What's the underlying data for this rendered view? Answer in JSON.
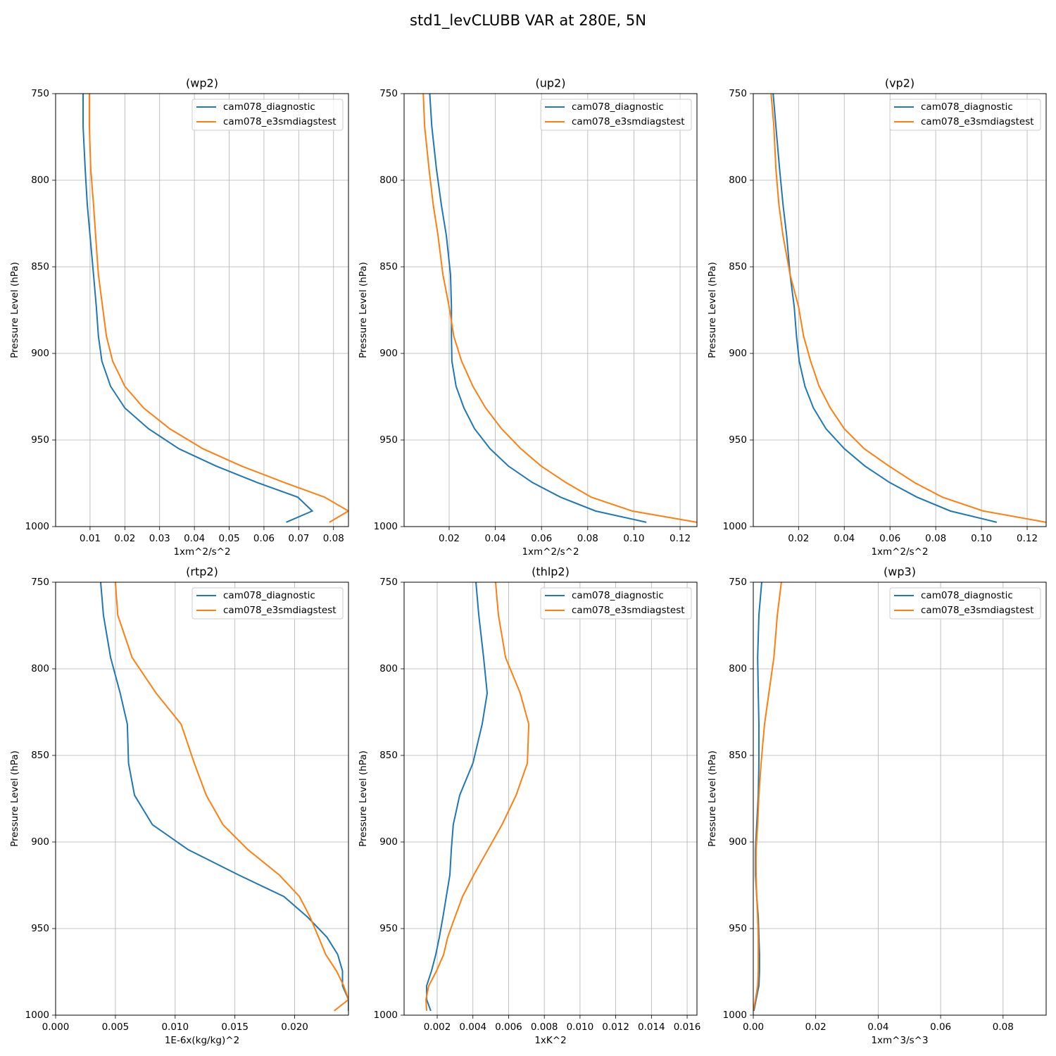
{
  "title": "std1_levCLUBB VAR at 280E, 5N",
  "chart_data": [
    {
      "type": "line",
      "title": "(wp2)",
      "xlabel": "1xm^2/s^2",
      "ylabel": "Pressure Level (hPa)",
      "y": [
        750,
        769,
        793.5,
        814,
        832,
        854.5,
        873,
        890,
        904.5,
        919,
        931.5,
        943.5,
        955,
        965,
        974.5,
        983,
        991,
        997.5
      ],
      "series": [
        {
          "name": "cam078_diagnostic",
          "color": "#1f77b4",
          "values": [
            0.008,
            0.008,
            0.0086,
            0.0092,
            0.01,
            0.011,
            0.0118,
            0.0124,
            0.0134,
            0.0159,
            0.02,
            0.0268,
            0.0355,
            0.0462,
            0.058,
            0.0697,
            0.0739,
            0.0664
          ]
        },
        {
          "name": "cam078_e3smdiagstest",
          "color": "#ff7f0e",
          "values": [
            0.0098,
            0.0098,
            0.0102,
            0.011,
            0.0116,
            0.0124,
            0.0136,
            0.0147,
            0.0165,
            0.02,
            0.0254,
            0.0329,
            0.0424,
            0.0535,
            0.0658,
            0.0774,
            0.0843,
            0.0788
          ]
        }
      ],
      "xlim": [
        0.0001,
        0.0843
      ],
      "xticks": [
        0.01,
        0.02,
        0.03,
        0.04,
        0.05,
        0.06,
        0.07,
        0.08
      ],
      "ylim": [
        750,
        1000
      ],
      "yticks": [
        750,
        800,
        850,
        900,
        950,
        1000
      ],
      "y_inverted": true,
      "grid": true,
      "legend": "upper right"
    },
    {
      "type": "line",
      "title": "(up2)",
      "xlabel": "1xm^2/s^2",
      "ylabel": "Pressure Level (hPa)",
      "y": [
        750,
        769,
        793.5,
        814,
        832,
        854.5,
        873,
        890,
        904.5,
        919,
        931.5,
        943.5,
        955,
        965,
        974.5,
        983,
        991,
        997.5
      ],
      "series": [
        {
          "name": "cam078_diagnostic",
          "color": "#1f77b4",
          "values": [
            0.0116,
            0.0125,
            0.0145,
            0.0166,
            0.0188,
            0.0206,
            0.021,
            0.021,
            0.0212,
            0.023,
            0.0264,
            0.031,
            0.0377,
            0.0456,
            0.056,
            0.0682,
            0.0834,
            0.1054
          ]
        },
        {
          "name": "cam078_e3smdiagstest",
          "color": "#ff7f0e",
          "values": [
            0.0088,
            0.0094,
            0.0113,
            0.0131,
            0.0152,
            0.0173,
            0.02,
            0.022,
            0.0254,
            0.0303,
            0.0358,
            0.0427,
            0.051,
            0.0598,
            0.0705,
            0.0815,
            0.0992,
            0.1273
          ]
        }
      ],
      "xlim": [
        0.0005,
        0.1273
      ],
      "xticks": [
        0.02,
        0.04,
        0.06,
        0.08,
        {
          "value": 0.1,
          "label": "0.10"
        },
        0.12
      ],
      "ylim": [
        750,
        1000
      ],
      "yticks": [
        750,
        800,
        850,
        900,
        950,
        1000
      ],
      "y_inverted": true,
      "grid": true,
      "legend": "upper right"
    },
    {
      "type": "line",
      "title": "(vp2)",
      "xlabel": "1xm^2/s^2",
      "ylabel": "Pressure Level (hPa)",
      "y": [
        750,
        769,
        793.5,
        814,
        832,
        854.5,
        873,
        890,
        904.5,
        919,
        931.5,
        943.5,
        955,
        965,
        974.5,
        983,
        991,
        997.5
      ],
      "series": [
        {
          "name": "cam078_diagnostic",
          "color": "#1f77b4",
          "values": [
            0.0089,
            0.0101,
            0.0117,
            0.0132,
            0.0148,
            0.0163,
            0.0181,
            0.0191,
            0.0203,
            0.0228,
            0.0265,
            0.032,
            0.04,
            0.049,
            0.0598,
            0.0718,
            0.0864,
            0.1067
          ]
        },
        {
          "name": "cam078_e3smdiagstest",
          "color": "#ff7f0e",
          "values": [
            0.008,
            0.0092,
            0.0101,
            0.0114,
            0.0132,
            0.0163,
            0.02,
            0.0222,
            0.0253,
            0.029,
            0.0339,
            0.04,
            0.0487,
            0.0595,
            0.0706,
            0.0829,
            0.1008,
            0.1283
          ]
        }
      ],
      "xlim": [
        0.0002,
        0.1283
      ],
      "xticks": [
        0.02,
        0.04,
        0.06,
        0.08,
        {
          "value": 0.1,
          "label": "0.10"
        },
        0.12
      ],
      "ylim": [
        750,
        1000
      ],
      "yticks": [
        750,
        800,
        850,
        900,
        950,
        1000
      ],
      "y_inverted": true,
      "grid": true,
      "legend": "upper right"
    },
    {
      "type": "line",
      "title": "(rtp2)",
      "xlabel": "1E-6x(kg/kg)^2",
      "ylabel": "Pressure Level (hPa)",
      "y": [
        750,
        769,
        793.5,
        814,
        832,
        854.5,
        873,
        890,
        904.5,
        919,
        931.5,
        943.5,
        955,
        965,
        974.5,
        983,
        991,
        997.5
      ],
      "series": [
        {
          "name": "cam078_diagnostic",
          "color": "#1f77b4",
          "values": [
            0.00377,
            0.004,
            0.0046,
            0.0054,
            0.006,
            0.0061,
            0.0066,
            0.0081,
            0.0111,
            0.0153,
            0.0191,
            0.0211,
            0.0227,
            0.0236,
            0.024,
            0.024,
            0.0245,
            0.0245
          ]
        },
        {
          "name": "cam078_e3smdiagstest",
          "color": "#ff7f0e",
          "values": [
            0.005,
            0.0052,
            0.0064,
            0.0084,
            0.0105,
            0.0116,
            0.0126,
            0.014,
            0.0161,
            0.0187,
            0.0204,
            0.0213,
            0.022,
            0.0226,
            0.0235,
            0.0241,
            0.0245,
            0.0233
          ]
        }
      ],
      "xlim": [
        0,
        0.0245
      ],
      "xticks": [
        {
          "value": 0,
          "label": "0.000"
        },
        {
          "value": 0.005,
          "label": "0.005"
        },
        {
          "value": 0.01,
          "label": "0.010"
        },
        {
          "value": 0.015,
          "label": "0.015"
        },
        {
          "value": 0.02,
          "label": "0.020"
        }
      ],
      "ylim": [
        750,
        1000
      ],
      "yticks": [
        750,
        800,
        850,
        900,
        950,
        1000
      ],
      "y_inverted": true,
      "grid": true,
      "legend": "upper right"
    },
    {
      "type": "line",
      "title": "(thlp2)",
      "xlabel": "1xK^2",
      "ylabel": "Pressure Level (hPa)",
      "y": [
        750,
        769,
        793.5,
        814,
        832,
        854.5,
        873,
        890,
        904.5,
        919,
        931.5,
        943.5,
        955,
        965,
        974.5,
        983,
        991,
        997.5
      ],
      "series": [
        {
          "name": "cam078_diagnostic",
          "color": "#1f77b4",
          "values": [
            0.00417,
            0.00433,
            0.0046,
            0.0048,
            0.00452,
            0.004,
            0.00326,
            0.0029,
            0.00279,
            0.00271,
            0.00251,
            0.00232,
            0.00212,
            0.00192,
            0.00168,
            0.00141,
            0.00141,
            0.00164
          ]
        },
        {
          "name": "cam078_e3smdiagstest",
          "color": "#ff7f0e",
          "values": [
            0.00527,
            0.00543,
            0.00583,
            0.00665,
            0.00713,
            0.00705,
            0.00642,
            0.00563,
            0.00484,
            0.00405,
            0.00342,
            0.00299,
            0.00259,
            0.00236,
            0.00196,
            0.00153,
            0.00137,
            0.00141
          ]
        }
      ],
      "xlim": [
        0.000146,
        0.01655
      ],
      "xticks": [
        0.002,
        0.004,
        0.006,
        0.008,
        {
          "value": 0.01,
          "label": "0.010"
        },
        0.012,
        0.014,
        0.016
      ],
      "ylim": [
        750,
        1000
      ],
      "yticks": [
        750,
        800,
        850,
        900,
        950,
        1000
      ],
      "y_inverted": true,
      "grid": true,
      "legend": "upper right"
    },
    {
      "type": "line",
      "title": "(wp3)",
      "xlabel": "1xm^3/s^3",
      "ylabel": "Pressure Level (hPa)",
      "y": [
        750,
        769,
        793.5,
        814,
        832,
        854.5,
        873,
        890,
        904.5,
        919,
        931.5,
        943.5,
        955,
        965,
        974.5,
        983,
        991,
        997.5
      ],
      "series": [
        {
          "name": "cam078_diagnostic",
          "color": "#1f77b4",
          "values": [
            0.0027,
            0.0018,
            0.0014,
            0.0016,
            0.0018,
            0.0018,
            0.0016,
            0.0011,
            0.0007,
            0.0007,
            0.0011,
            0.0016,
            0.0018,
            0.002,
            0.002,
            0.0018,
            0.0009,
            0.0002
          ]
        },
        {
          "name": "cam078_e3smdiagstest",
          "color": "#ff7f0e",
          "values": [
            0.009,
            0.0077,
            0.0066,
            0.005,
            0.0036,
            0.0025,
            0.0018,
            0.0014,
            0.0009,
            0.0009,
            0.0011,
            0.0014,
            0.0016,
            0.0016,
            0.0016,
            0.0014,
            0.0007,
            0
          ]
        }
      ],
      "xlim": [
        0,
        0.0938
      ],
      "xticks": [
        {
          "value": 0,
          "label": "0.00"
        },
        0.02,
        0.04,
        0.06,
        0.08
      ],
      "ylim": [
        750,
        1000
      ],
      "yticks": [
        750,
        800,
        850,
        900,
        950,
        1000
      ],
      "y_inverted": true,
      "grid": true,
      "legend": "upper right"
    }
  ]
}
